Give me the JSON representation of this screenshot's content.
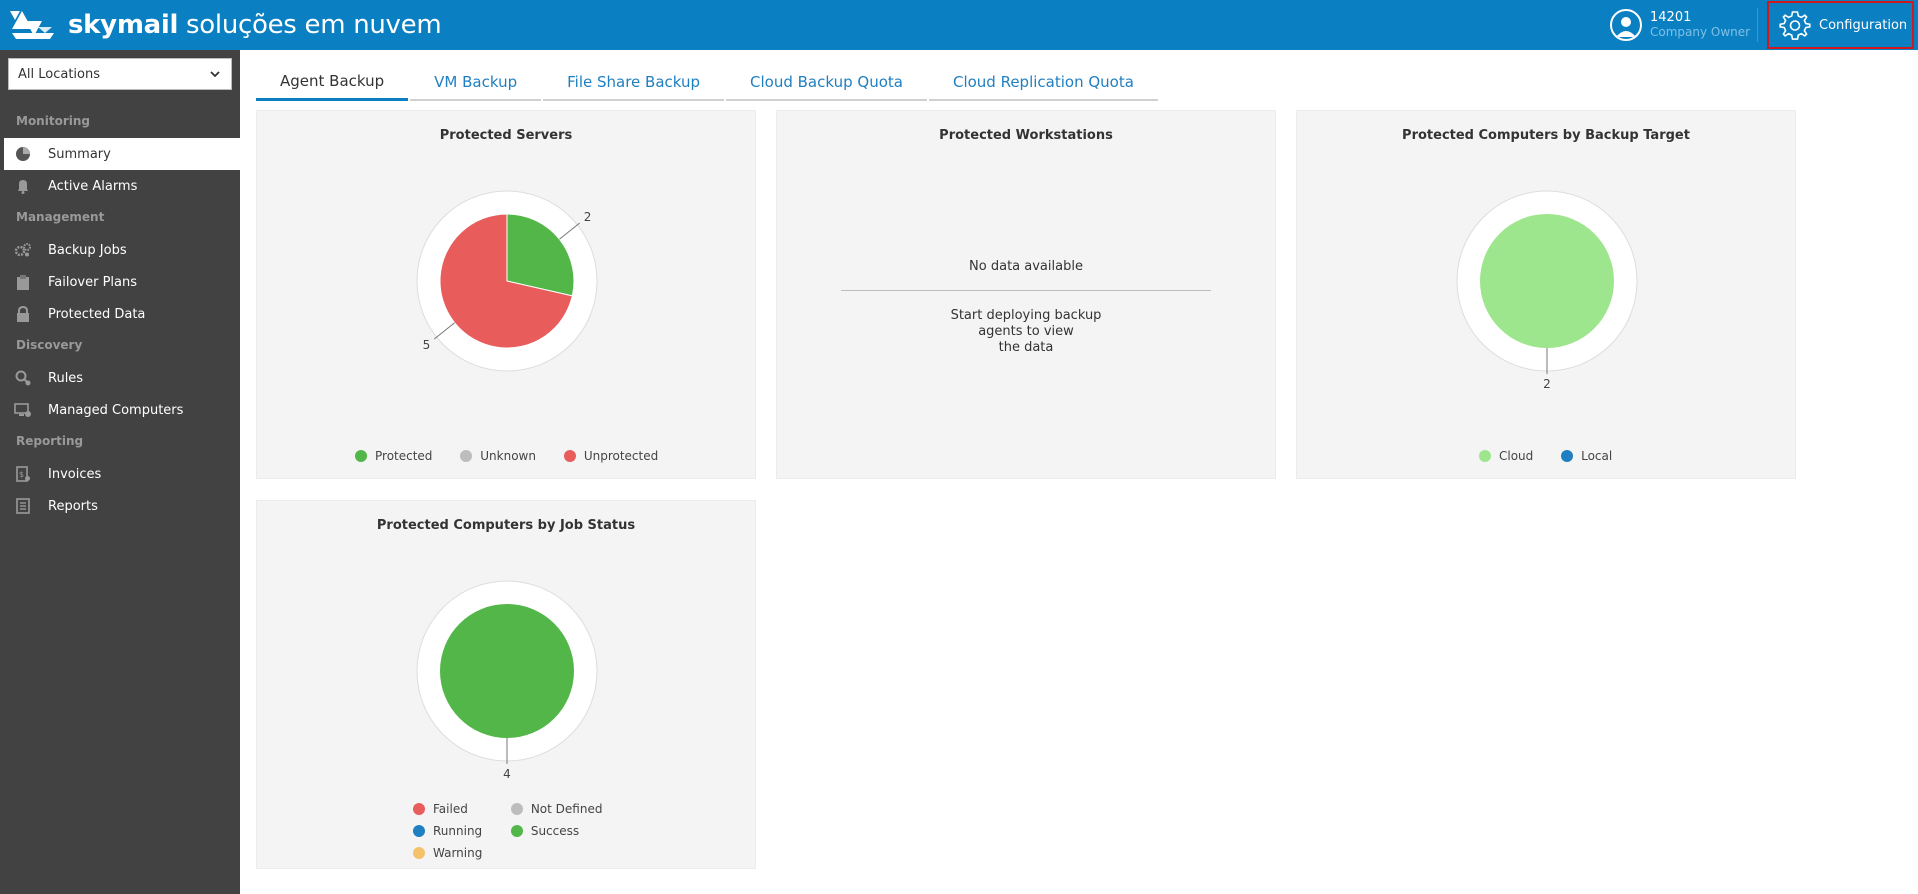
{
  "header": {
    "brand_bold": "skymail",
    "brand_light": "soluções em nuvem",
    "user_id": "14201",
    "user_role": "Company Owner",
    "config_label": "Configuration",
    "bg_color": "#0a7fc2"
  },
  "sidebar": {
    "location_select": "All Locations",
    "sections": {
      "monitoring": "Monitoring",
      "management": "Management",
      "discovery": "Discovery",
      "reporting": "Reporting"
    },
    "items": [
      {
        "label": "Summary",
        "icon": "pie-chart-icon",
        "active": true
      },
      {
        "label": "Active Alarms",
        "icon": "bell-icon"
      },
      {
        "label": "Backup Jobs",
        "icon": "gear-cluster-icon"
      },
      {
        "label": "Failover Plans",
        "icon": "clipboard-icon"
      },
      {
        "label": "Protected Data",
        "icon": "lock-icon"
      },
      {
        "label": "Rules",
        "icon": "search-gear-icon"
      },
      {
        "label": "Managed Computers",
        "icon": "computer-gear-icon"
      },
      {
        "label": "Invoices",
        "icon": "invoice-icon"
      },
      {
        "label": "Reports",
        "icon": "report-icon"
      }
    ]
  },
  "tabs": [
    {
      "label": "Agent Backup",
      "active": true
    },
    {
      "label": "VM Backup"
    },
    {
      "label": "File Share Backup"
    },
    {
      "label": "Cloud Backup Quota"
    },
    {
      "label": "Cloud Replication Quota"
    }
  ],
  "panels": {
    "servers": {
      "title": "Protected Servers",
      "legend": [
        {
          "label": "Protected",
          "color": "#52b748"
        },
        {
          "label": "Unknown",
          "color": "#bdbdbd"
        },
        {
          "label": "Unprotected",
          "color": "#e85c5c"
        }
      ]
    },
    "workstations": {
      "title": "Protected Workstations",
      "nodata": "No data available",
      "hint_line1": "Start deploying backup",
      "hint_line2": "agents to view",
      "hint_line3": "the data"
    },
    "target": {
      "title": "Protected Computers by Backup Target",
      "legend": [
        {
          "label": "Cloud",
          "color": "#9de68e"
        },
        {
          "label": "Local",
          "color": "#1f7fc0"
        }
      ]
    },
    "jobstatus": {
      "title": "Protected Computers by Job Status",
      "legend": [
        {
          "label": "Failed",
          "color": "#e85c5c"
        },
        {
          "label": "Not Defined",
          "color": "#bdbdbd"
        },
        {
          "label": "Running",
          "color": "#1f7fc0"
        },
        {
          "label": "Success",
          "color": "#52b748"
        },
        {
          "label": "Warning",
          "color": "#f5c26b"
        }
      ]
    }
  },
  "chart_data": [
    {
      "type": "pie",
      "title": "Protected Servers",
      "categories": [
        "Protected",
        "Unknown",
        "Unprotected"
      ],
      "values": [
        2,
        0,
        5
      ],
      "colors": [
        "#52b748",
        "#bdbdbd",
        "#e85c5c"
      ]
    },
    {
      "type": "pie",
      "title": "Protected Computers by Backup Target",
      "categories": [
        "Cloud",
        "Local"
      ],
      "values": [
        2,
        0
      ],
      "colors": [
        "#9de68e",
        "#1f7fc0"
      ]
    },
    {
      "type": "pie",
      "title": "Protected Computers by Job Status",
      "categories": [
        "Failed",
        "Not Defined",
        "Running",
        "Success",
        "Warning"
      ],
      "values": [
        0,
        0,
        0,
        4,
        0
      ],
      "colors": [
        "#e85c5c",
        "#bdbdbd",
        "#1f7fc0",
        "#52b748",
        "#f5c26b"
      ]
    }
  ]
}
